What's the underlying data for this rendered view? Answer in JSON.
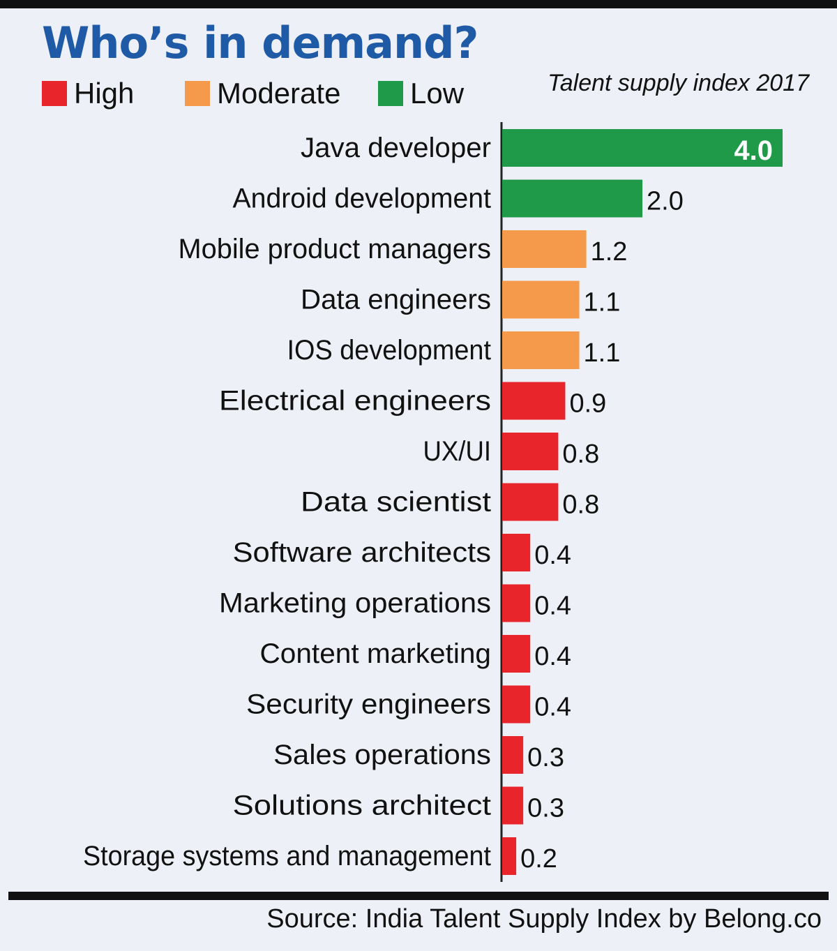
{
  "chart_data": {
    "type": "bar",
    "orientation": "horizontal",
    "title": "Who’s in demand?",
    "subtitle": "Talent supply index 2017",
    "legend": [
      {
        "label": "High",
        "color": "#e8252b"
      },
      {
        "label": "Moderate",
        "color": "#f5994a"
      },
      {
        "label": "Low",
        "color": "#1f9a48"
      }
    ],
    "categories": [
      "Java developer",
      "Android development",
      "Mobile product managers",
      "Data engineers",
      "IOS development",
      "Electrical engineers",
      "UX/UI",
      "Data scientist",
      "Software architects",
      "Marketing operations",
      "Content marketing",
      "Security engineers",
      "Sales operations",
      "Solutions architect",
      "Storage systems and management"
    ],
    "values": [
      4.0,
      2.0,
      1.2,
      1.1,
      1.1,
      0.9,
      0.8,
      0.8,
      0.4,
      0.4,
      0.4,
      0.4,
      0.3,
      0.3,
      0.2
    ],
    "value_labels": [
      "4.0",
      "2.0",
      "1.2",
      "1.1",
      "1.1",
      "0.9",
      "0.8",
      "0.8",
      "0.4",
      "0.4",
      "0.4",
      "0.4",
      "0.3",
      "0.3",
      "0.2"
    ],
    "demand_levels": [
      "Low",
      "Low",
      "Moderate",
      "Moderate",
      "Moderate",
      "High",
      "High",
      "High",
      "High",
      "High",
      "High",
      "High",
      "High",
      "High",
      "High"
    ],
    "xlim": [
      0,
      4.0
    ],
    "grid": false,
    "source": "Source: India Talent Supply Index by Belong.co"
  }
}
